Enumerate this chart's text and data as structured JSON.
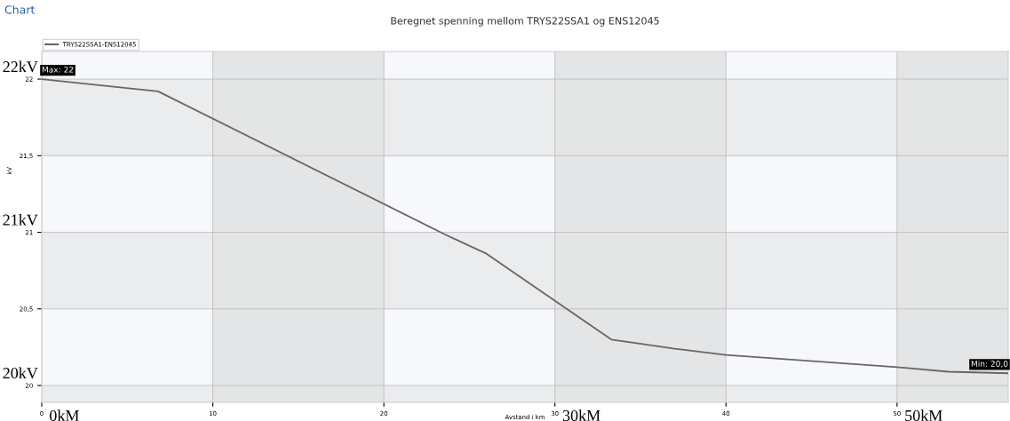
{
  "chart_data": {
    "type": "line",
    "title": "Beregnet spenning mellom TRYS22SSA1 og ENS12045",
    "xlabel": "Avstand i km",
    "ylabel": "kV",
    "x": [
      0,
      6.8,
      23.5,
      26,
      33.3,
      34.5,
      37,
      40,
      50,
      53,
      56.5
    ],
    "series": [
      {
        "name": "TRYS22SSA1-ENS12045",
        "color": "#666666",
        "values": [
          22.0,
          21.92,
          20.99,
          20.86,
          20.3,
          20.28,
          20.24,
          20.2,
          20.12,
          20.09,
          20.08
        ]
      }
    ],
    "xlim": [
      0,
      56.5
    ],
    "xticks": [
      0,
      10,
      20,
      30,
      40,
      50
    ],
    "ylim": [
      19.89,
      22.18
    ],
    "yticks": [
      20,
      {
        "value": 20.5,
        "label": "20,5"
      },
      21,
      {
        "value": 21.5,
        "label": "21,5"
      },
      22
    ],
    "bands": [
      {
        "axis": "x",
        "from": 10,
        "to": 20,
        "color": "#d8d8d8"
      },
      {
        "axis": "x",
        "from": 30,
        "to": 40,
        "color": "#d8d8d8"
      },
      {
        "axis": "x",
        "from": 50,
        "to": 56.5,
        "color": "#d8d8d8"
      },
      {
        "axis": "y",
        "from": 21.5,
        "to": 22,
        "color": "#e4e4e4"
      },
      {
        "axis": "y",
        "from": 20.5,
        "to": 21,
        "color": "#e4e4e4"
      },
      {
        "axis": "y",
        "from": 19.89,
        "to": 20,
        "color": "#e4e4e4"
      }
    ],
    "annotations": [
      "Chart",
      {
        "text": "Max: 22",
        "x": 0,
        "y": 22.0
      },
      {
        "text": "Min: 20,0",
        "x": 56.5,
        "y": 20.08
      },
      {
        "text": "22kV",
        "x": 0,
        "y": 22.0
      },
      {
        "text": "21kV",
        "x": 0,
        "y": 21.0
      },
      {
        "text": "20kV",
        "x": 0,
        "y": 20.0
      },
      {
        "text": "0kM",
        "x": 0,
        "y": 19.89
      },
      {
        "text": "30kM",
        "x": 30,
        "y": 19.89
      },
      {
        "text": "50kM",
        "x": 50,
        "y": 19.89
      }
    ],
    "grid": true,
    "legend": "top left",
    "marker": "none",
    "line_style": "solid"
  }
}
